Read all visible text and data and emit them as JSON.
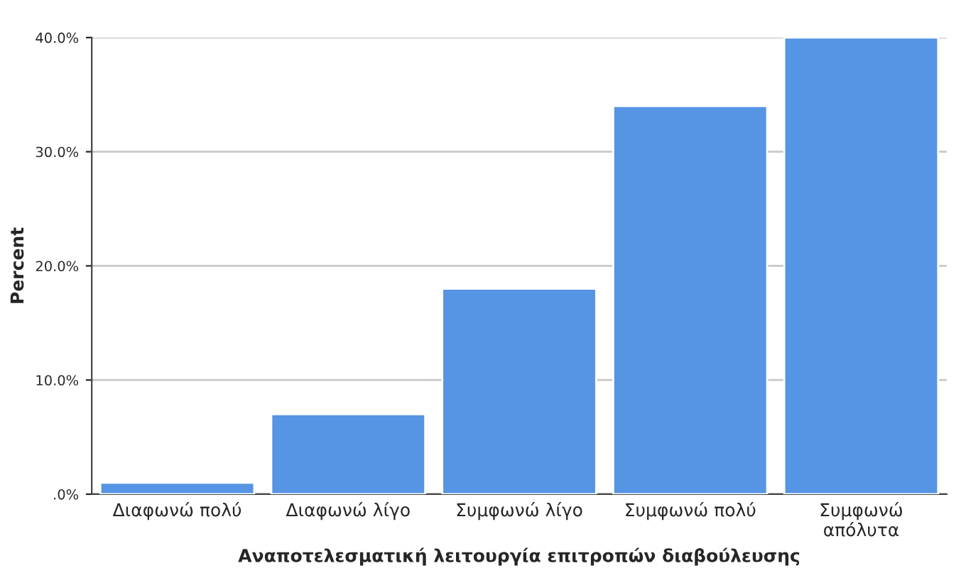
{
  "chart_data": {
    "type": "bar",
    "xlabel": "Αναποτελεσματική λειτουργία επιτροπών διαβούλευσης",
    "ylabel": "Percent",
    "categories": [
      "Διαφωνώ πολύ",
      "Διαφωνώ λίγο",
      "Συμφωνώ λίγο",
      "Συμφωνώ πολύ",
      "Συμφωνώ\nαπόλυτα"
    ],
    "values": [
      1,
      7,
      18,
      34,
      40
    ],
    "color": "#5694e4",
    "ylim": [
      0,
      40
    ],
    "yticks": [
      {
        "value": 0,
        "label": ".0%"
      },
      {
        "value": 10,
        "label": "10.0%"
      },
      {
        "value": 20,
        "label": "20.0%"
      },
      {
        "value": 30,
        "label": "30.0%"
      },
      {
        "value": 40,
        "label": "40.0%"
      }
    ],
    "grid": "y",
    "legend": false
  }
}
